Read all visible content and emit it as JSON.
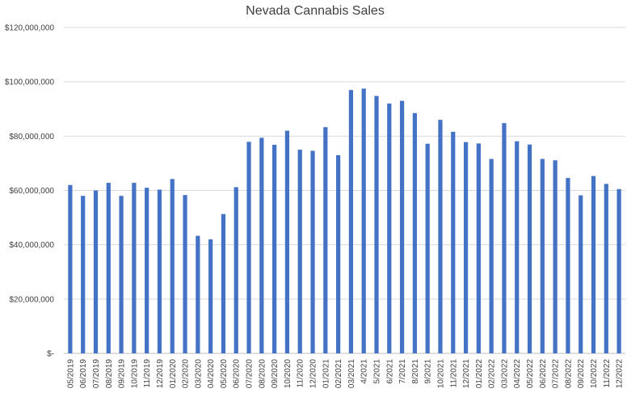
{
  "chart_data": {
    "type": "bar",
    "title": "Nevada Cannabis Sales",
    "xlabel": "",
    "ylabel": "",
    "ylim": [
      0,
      120000000
    ],
    "y_ticks": [
      0,
      20000000,
      40000000,
      60000000,
      80000000,
      100000000,
      120000000
    ],
    "y_tick_labels": [
      "$-",
      "$20,000,000",
      "$40,000,000",
      "$60,000,000",
      "$80,000,000",
      "$100,000,000",
      "$120,000,000"
    ],
    "grid": true,
    "legend": "none",
    "bar_color": "#4472c4",
    "categories": [
      "05/2019",
      "06/2019",
      "07/2019",
      "08/2019",
      "09/2019",
      "10/2019",
      "11/2019",
      "12/2019",
      "01/2020",
      "02/2020",
      "03/2020",
      "04/2020",
      "05/2020",
      "06/2020",
      "07/2020",
      "08/2020",
      "09/2020",
      "10/2020",
      "11/2020",
      "12/2020",
      "01/2021",
      "02/2021",
      "03/2021",
      "4/2021",
      "5/2021",
      "6/2021",
      "7/2021",
      "8/2021",
      "9/2021",
      "10/2021",
      "11/2021",
      "12/2021",
      "01/2022",
      "02/2022",
      "03/2022",
      "04/2022",
      "05/2022",
      "06/2022",
      "07/2022",
      "08/2022",
      "09/2022",
      "10/2022",
      "11/2022",
      "12/2022"
    ],
    "values": [
      62000000,
      58000000,
      60000000,
      62800000,
      58000000,
      62800000,
      61000000,
      60300000,
      64200000,
      58300000,
      43300000,
      42000000,
      51300000,
      61200000,
      77900000,
      79400000,
      76800000,
      82000000,
      75000000,
      74600000,
      83300000,
      73000000,
      97000000,
      97500000,
      94800000,
      92000000,
      93000000,
      88500000,
      77200000,
      86000000,
      81600000,
      77800000,
      77300000,
      71600000,
      84800000,
      78100000,
      76900000,
      71600000,
      71100000,
      64600000,
      58200000,
      65300000,
      62400000,
      60500000
    ]
  }
}
